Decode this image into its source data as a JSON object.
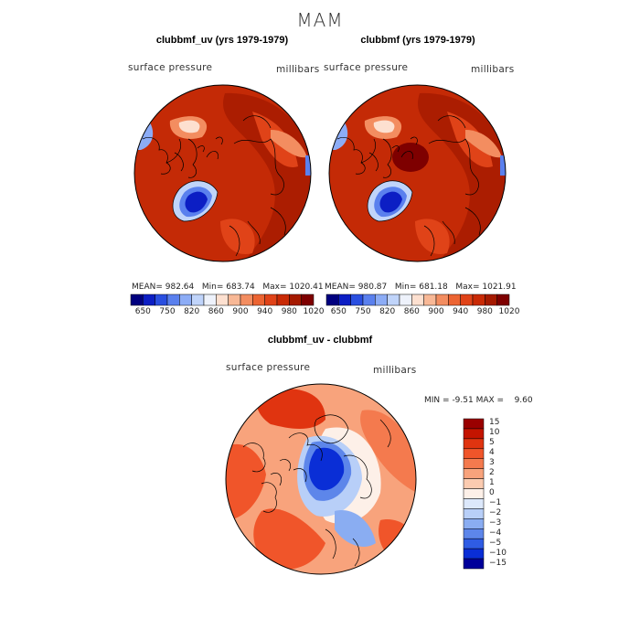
{
  "title": "MAM",
  "panels": [
    {
      "title": "clubbmf_uv (yrs 1979-1979)",
      "left_label": "surface pressure",
      "right_label": "millibars",
      "stats": {
        "mean_label": "MEAN=",
        "mean": "982.64",
        "min_label": "Min=",
        "min": "683.74",
        "max_label": "Max=",
        "max": "1020.41"
      },
      "colorbar_ticks": [
        "650",
        "750",
        "820",
        "860",
        "900",
        "940",
        "980",
        "1020"
      ]
    },
    {
      "title": "clubbmf (yrs 1979-1979)",
      "left_label": "surface pressure",
      "right_label": "millibars",
      "stats": {
        "mean_label": "MEAN=",
        "mean": "980.87",
        "min_label": "Min=",
        "min": "681.18",
        "max_label": "Max=",
        "max": "1021.91"
      },
      "colorbar_ticks": [
        "650",
        "750",
        "820",
        "860",
        "900",
        "940",
        "980",
        "1020"
      ]
    }
  ],
  "diff_panel": {
    "title": "clubbmf_uv - clubbmf",
    "left_label": "surface pressure",
    "right_label": "millibars",
    "min_label": "MIN =",
    "min": "-9.51",
    "max_label": "MAX =",
    "max": "9.60",
    "colorbar_ticks": [
      "15",
      "10",
      "5",
      "4",
      "3",
      "2",
      "1",
      "0",
      "−1",
      "−2",
      "−3",
      "−4",
      "−5",
      "−10",
      "−15"
    ]
  },
  "colors": {
    "abs_scale": [
      "#00007f",
      "#0c1ec4",
      "#2a4fe0",
      "#5a80ee",
      "#8cacf6",
      "#c0d4fa",
      "#eef2fb",
      "#fde0d0",
      "#f8b896",
      "#f38d60",
      "#ec6432",
      "#e04318",
      "#c92a05",
      "#a51a00",
      "#7e0000"
    ],
    "diff_scale": [
      "#9a0000",
      "#c41400",
      "#e03410",
      "#f0552a",
      "#f47a4e",
      "#f8a37c",
      "#fbcbb0",
      "#fdf0e8",
      "#dce8fb",
      "#b8cff8",
      "#8aadf2",
      "#5d86ea",
      "#2f5ce4",
      "#0a2ed6",
      "#00009a"
    ]
  },
  "chart_data": {
    "type": "heatmap",
    "projection": "north polar stereographic",
    "maps": [
      {
        "name": "clubbmf_uv (yrs 1979-1979)",
        "variable": "surface pressure",
        "units": "millibars",
        "mean": 982.64,
        "min": 683.74,
        "max": 1020.41,
        "levels": [
          650,
          750,
          820,
          860,
          900,
          940,
          980,
          1020
        ]
      },
      {
        "name": "clubbmf (yrs 1979-1979)",
        "variable": "surface pressure",
        "units": "millibars",
        "mean": 980.87,
        "min": 681.18,
        "max": 1021.91,
        "levels": [
          650,
          750,
          820,
          860,
          900,
          940,
          980,
          1020
        ]
      },
      {
        "name": "clubbmf_uv - clubbmf",
        "variable": "surface pressure",
        "units": "millibars",
        "min": -9.51,
        "max": 9.6,
        "levels": [
          -15,
          -10,
          -5,
          -4,
          -3,
          -2,
          -1,
          0,
          1,
          2,
          3,
          4,
          5,
          10,
          15
        ]
      }
    ]
  }
}
